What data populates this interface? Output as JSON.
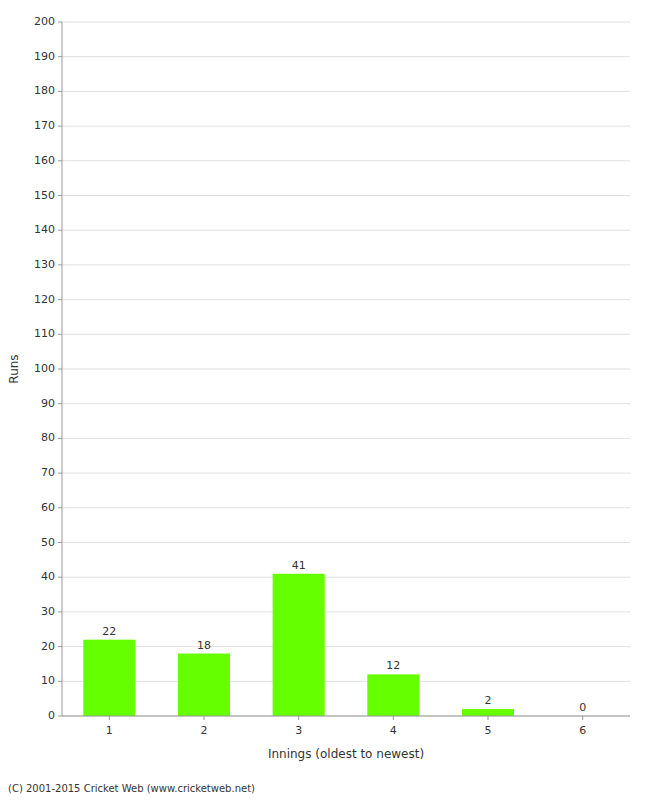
{
  "chart_data": {
    "type": "bar",
    "categories": [
      "1",
      "2",
      "3",
      "4",
      "5",
      "6"
    ],
    "values": [
      22,
      18,
      41,
      12,
      2,
      0
    ],
    "color": "#66ff00",
    "xlabel": "Innings (oldest to newest)",
    "ylabel": "Runs",
    "ylim": [
      0,
      200
    ],
    "yticks": [
      0,
      10,
      20,
      30,
      40,
      50,
      60,
      70,
      80,
      90,
      100,
      110,
      120,
      130,
      140,
      150,
      160,
      170,
      180,
      190,
      200
    ],
    "grid": true,
    "data_labels": true,
    "footer": "(C) 2001-2015 Cricket Web (www.cricketweb.net)"
  }
}
